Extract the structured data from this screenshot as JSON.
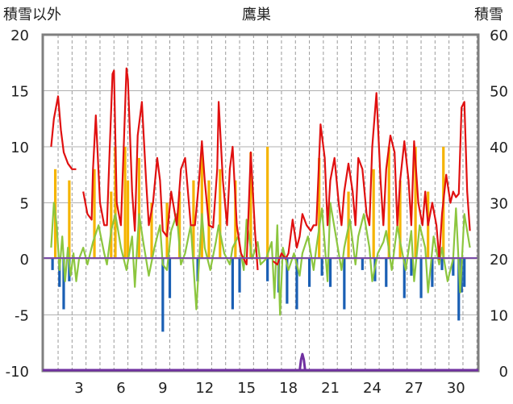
{
  "chart_data": {
    "type": "line",
    "title": "鷹巣",
    "ylabel_left": "積雪以外",
    "ylabel_right": "積雪",
    "ylim_left": [
      -10,
      20
    ],
    "ylim_right": [
      0,
      60
    ],
    "yticks_left": [
      "20",
      "15",
      "10",
      "5",
      "0",
      "-5",
      "-10"
    ],
    "yticks_right": [
      "60",
      "50",
      "40",
      "30",
      "20",
      "10",
      "0"
    ],
    "xlim": [
      1,
      31
    ],
    "xticks": [
      "3",
      "6",
      "9",
      "12",
      "15",
      "18",
      "21",
      "24",
      "27",
      "30"
    ],
    "grid": true,
    "series": [
      {
        "axis": "left",
        "kind": "line",
        "color": "#e01010",
        "x": [
          1.0,
          1.2,
          1.5,
          1.7,
          1.9,
          2.2,
          2.5,
          2.8,
          3.0,
          3.3,
          3.6,
          3.9,
          4.0,
          4.2,
          4.5,
          4.8,
          5.0,
          5.2,
          5.4,
          5.5,
          5.7,
          6.0,
          6.2,
          6.4,
          6.5,
          6.8,
          7.0,
          7.2,
          7.5,
          7.8,
          8.0,
          8.3,
          8.6,
          8.8,
          9.0,
          9.3,
          9.6,
          9.8,
          10.0,
          10.3,
          10.6,
          10.8,
          11.0,
          11.3,
          11.6,
          11.8,
          12.0,
          12.3,
          12.6,
          12.9,
          13.0,
          13.3,
          13.6,
          13.8,
          14.0,
          14.3,
          14.6,
          14.8,
          15.0,
          15.3,
          15.6,
          15.8,
          16.0,
          16.9,
          17.2,
          17.5,
          17.8,
          18.0,
          18.3,
          18.6,
          18.8,
          19.0,
          19.3,
          19.6,
          19.8,
          20.0,
          20.3,
          20.6,
          20.8,
          21.0,
          21.3,
          21.6,
          21.8,
          22.0,
          22.3,
          22.6,
          22.8,
          23.0,
          23.3,
          23.6,
          23.8,
          24.0,
          24.3,
          24.6,
          24.8,
          25.0,
          25.3,
          25.6,
          25.8,
          26.0,
          26.3,
          26.6,
          26.8,
          27.0,
          27.3,
          27.6,
          27.8,
          28.0,
          28.3,
          28.6,
          28.8,
          29.0,
          29.3,
          29.6,
          29.8,
          30.0,
          30.2,
          30.4,
          30.6,
          30.8,
          31.0
        ],
        "values": [
          10.0,
          12.5,
          14.5,
          11.5,
          9.5,
          8.5,
          8.0,
          8.0,
          null,
          6.0,
          4.0,
          3.5,
          8.0,
          12.8,
          5.0,
          3.0,
          3.0,
          10.0,
          16.5,
          16.8,
          5.0,
          3.0,
          10.0,
          17.0,
          16.0,
          6.0,
          2.5,
          11.0,
          14.0,
          7.0,
          3.0,
          5.0,
          9.0,
          7.0,
          2.5,
          2.0,
          6.0,
          4.5,
          3.0,
          8.0,
          9.0,
          6.0,
          3.0,
          3.0,
          7.0,
          10.5,
          7.0,
          3.0,
          2.8,
          8.0,
          14.0,
          7.0,
          3.0,
          8.0,
          10.0,
          3.0,
          0.5,
          0.0,
          -0.5,
          9.5,
          2.5,
          -1.0,
          null,
          -0.2,
          -0.5,
          0.5,
          0.0,
          0.5,
          3.5,
          1.0,
          2.0,
          4.0,
          3.0,
          2.5,
          3.0,
          3.0,
          12.0,
          9.0,
          3.0,
          7.0,
          9.0,
          5.0,
          3.0,
          6.0,
          8.5,
          6.0,
          3.0,
          9.0,
          8.0,
          4.0,
          3.0,
          10.0,
          14.8,
          7.0,
          3.0,
          8.0,
          11.0,
          9.5,
          3.0,
          7.0,
          10.5,
          7.0,
          3.0,
          10.5,
          5.0,
          3.0,
          6.0,
          3.0,
          5.0,
          3.0,
          0.0,
          4.0,
          7.5,
          5.0,
          6.0,
          5.5,
          5.8,
          13.5,
          14.0,
          6.0,
          2.5
        ]
      },
      {
        "axis": "left",
        "kind": "line",
        "color": "#8cc63f",
        "x": [
          1.0,
          1.2,
          1.4,
          1.6,
          1.8,
          2.0,
          2.2,
          2.4,
          2.6,
          2.8,
          3.0,
          3.3,
          3.6,
          4.0,
          4.4,
          4.8,
          5.0,
          5.3,
          5.6,
          6.0,
          6.4,
          6.8,
          7.0,
          7.3,
          7.6,
          8.0,
          8.4,
          8.8,
          9.0,
          9.3,
          9.6,
          10.0,
          10.3,
          10.6,
          11.0,
          11.4,
          11.8,
          12.0,
          12.4,
          12.8,
          13.0,
          13.4,
          13.8,
          14.0,
          14.4,
          14.8,
          15.0,
          15.4,
          15.8,
          16.0,
          16.4,
          16.8,
          17.0,
          17.2,
          17.4,
          17.6,
          18.0,
          18.4,
          18.8,
          19.0,
          19.4,
          19.8,
          20.0,
          20.4,
          20.8,
          21.0,
          21.4,
          21.8,
          22.0,
          22.4,
          22.8,
          23.0,
          23.4,
          23.8,
          24.0,
          24.4,
          24.8,
          25.0,
          25.4,
          25.8,
          26.0,
          26.4,
          26.8,
          27.0,
          27.4,
          27.8,
          28.0,
          28.4,
          28.8,
          29.0,
          29.4,
          29.8,
          30.0,
          30.3,
          30.6,
          31.0
        ],
        "values": [
          1.0,
          5.0,
          3.0,
          -1.0,
          2.0,
          -2.0,
          1.0,
          -1.5,
          0.5,
          -2.0,
          0.0,
          1.0,
          -0.5,
          1.5,
          3.0,
          0.5,
          -0.5,
          2.5,
          4.0,
          1.0,
          -1.0,
          2.0,
          -2.5,
          4.0,
          1.5,
          -1.5,
          1.0,
          3.0,
          -0.5,
          -1.0,
          2.5,
          4.0,
          -0.5,
          0.5,
          3.0,
          -4.5,
          4.0,
          1.0,
          -1.0,
          1.5,
          3.0,
          0.5,
          -0.5,
          1.0,
          2.0,
          -1.0,
          3.5,
          0.0,
          1.5,
          -0.5,
          0.0,
          1.5,
          -3.5,
          3.0,
          -5.0,
          1.0,
          -1.0,
          0.5,
          -1.5,
          0.5,
          2.0,
          -1.0,
          1.0,
          4.5,
          -2.0,
          5.0,
          2.0,
          -1.0,
          1.0,
          3.5,
          -0.5,
          2.0,
          4.0,
          1.0,
          -2.0,
          0.5,
          1.5,
          2.5,
          -1.0,
          3.0,
          1.5,
          -1.0,
          2.5,
          -2.0,
          3.0,
          1.0,
          -3.0,
          2.0,
          -0.5,
          1.0,
          -2.0,
          0.0,
          4.5,
          -3.0,
          4.0,
          1.0
        ]
      },
      {
        "axis": "left",
        "kind": "bar",
        "color": "#f5b400",
        "x": [
          1.3,
          2.3,
          4.1,
          5.3,
          5.6,
          6.3,
          6.5,
          7.3,
          8.2,
          9.3,
          10.2,
          11.2,
          11.8,
          12.3,
          13.1,
          14.2,
          15.3,
          16.5,
          20.2,
          22.3,
          24.1,
          25.2,
          26.0,
          27.1,
          28.0,
          29.1
        ],
        "values": [
          8.0,
          7.0,
          8.0,
          6.0,
          10.0,
          10.0,
          7.0,
          9.0,
          5.0,
          5.0,
          6.0,
          7.0,
          10.0,
          7.0,
          8.0,
          7.0,
          9.5,
          10.0,
          9.0,
          6.0,
          8.0,
          10.0,
          7.0,
          10.0,
          6.0,
          10.0
        ]
      },
      {
        "axis": "left",
        "kind": "bar",
        "color": "#1a5fb4",
        "x": [
          1.1,
          1.6,
          1.9,
          2.3,
          9.0,
          9.5,
          11.5,
          14.0,
          14.5,
          16.5,
          17.3,
          17.9,
          18.6,
          19.5,
          20.4,
          21.0,
          22.0,
          23.3,
          24.2,
          25.0,
          26.3,
          26.8,
          27.5,
          28.3,
          29.0,
          29.8,
          30.2,
          30.4,
          30.6
        ],
        "values": [
          -1.0,
          -2.5,
          -4.5,
          -2.0,
          -6.5,
          -3.5,
          -2.0,
          -4.5,
          -3.0,
          -2.0,
          -3.0,
          -4.0,
          -4.5,
          -2.5,
          -1.5,
          -2.5,
          -4.5,
          -1.0,
          -2.0,
          -2.5,
          -3.5,
          -1.5,
          -3.5,
          -2.5,
          -1.0,
          -1.5,
          -5.5,
          -3.0,
          -2.5
        ]
      },
      {
        "axis": "right",
        "kind": "line",
        "color": "#7030a0",
        "x": [
          1,
          18.8,
          18.9,
          19.0,
          19.1,
          19.2,
          31
        ],
        "values": [
          0,
          0,
          2,
          3,
          2,
          0,
          0
        ]
      }
    ]
  }
}
